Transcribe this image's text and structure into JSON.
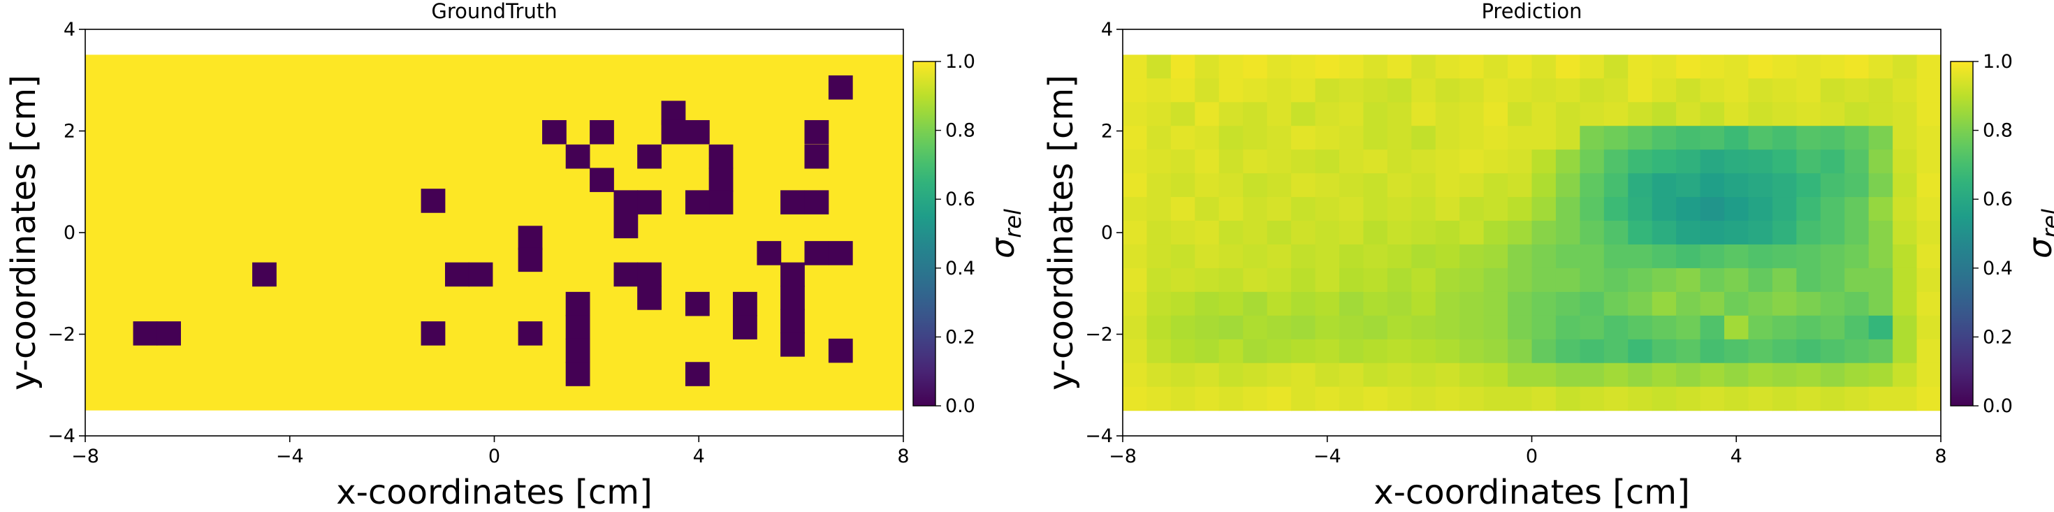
{
  "chart_data": [
    {
      "type": "heatmap",
      "title": "GroundTruth",
      "xlabel": "x-coordinates [cm]",
      "ylabel": "y-coordinates [cm]",
      "xlim": [
        -8,
        8
      ],
      "ylim": [
        -4,
        4
      ],
      "xticks": [
        -8,
        -4,
        0,
        4,
        8
      ],
      "yticks": [
        -4,
        -2,
        0,
        2,
        4
      ],
      "xticklabels": [
        "−8",
        "−4",
        "0",
        "4",
        "8"
      ],
      "yticklabels": [
        "−4",
        "−2",
        "0",
        "2",
        "4"
      ],
      "grid_extent": {
        "x": [
          -8,
          8
        ],
        "y": [
          -3.5,
          3.5
        ]
      },
      "cell_size": 0.467,
      "colorbar": {
        "label": "σrel",
        "range": [
          0,
          1
        ],
        "ticks": [
          0,
          0.2,
          0.4,
          0.6,
          0.8,
          1.0
        ],
        "ticklabels": [
          "0.0",
          "0.2",
          "0.4",
          "0.6",
          "0.8",
          "1.0"
        ]
      },
      "background_value": 1.0,
      "cells": [
        {
          "x": -6.83,
          "y": -1.98,
          "value": 0
        },
        {
          "x": -6.37,
          "y": -1.98,
          "value": 0
        },
        {
          "x": -4.5,
          "y": -0.82,
          "value": 0
        },
        {
          "x": -1.2,
          "y": 0.63,
          "value": 0
        },
        {
          "x": -1.2,
          "y": -1.98,
          "value": 0
        },
        {
          "x": -0.73,
          "y": -0.82,
          "value": 0
        },
        {
          "x": -0.27,
          "y": -0.82,
          "value": 0
        },
        {
          "x": 0.7,
          "y": -0.1,
          "value": 0
        },
        {
          "x": 0.7,
          "y": -0.53,
          "value": 0
        },
        {
          "x": 0.7,
          "y": -1.98,
          "value": 0
        },
        {
          "x": 1.17,
          "y": 1.98,
          "value": 0
        },
        {
          "x": 1.63,
          "y": 1.5,
          "value": 0
        },
        {
          "x": 1.63,
          "y": -1.4,
          "value": 0
        },
        {
          "x": 1.63,
          "y": -1.86,
          "value": 0
        },
        {
          "x": 1.63,
          "y": -2.32,
          "value": 0
        },
        {
          "x": 1.63,
          "y": -2.78,
          "value": 0
        },
        {
          "x": 2.1,
          "y": 1.98,
          "value": 0
        },
        {
          "x": 2.1,
          "y": 1.04,
          "value": 0
        },
        {
          "x": 2.57,
          "y": 0.6,
          "value": 0
        },
        {
          "x": 2.57,
          "y": 0.13,
          "value": 0
        },
        {
          "x": 3.03,
          "y": 0.6,
          "value": 0
        },
        {
          "x": 2.57,
          "y": -0.82,
          "value": 0
        },
        {
          "x": 3.03,
          "y": -0.82,
          "value": 0
        },
        {
          "x": 3.03,
          "y": -1.28,
          "value": 0
        },
        {
          "x": 3.03,
          "y": 1.5,
          "value": 0
        },
        {
          "x": 3.5,
          "y": 2.36,
          "value": 0
        },
        {
          "x": 3.5,
          "y": 1.98,
          "value": 0
        },
        {
          "x": 3.97,
          "y": 1.98,
          "value": 0
        },
        {
          "x": 4.43,
          "y": 1.5,
          "value": 0
        },
        {
          "x": 4.43,
          "y": 1.04,
          "value": 0
        },
        {
          "x": 4.43,
          "y": 0.6,
          "value": 0
        },
        {
          "x": 3.97,
          "y": 0.6,
          "value": 0
        },
        {
          "x": 3.97,
          "y": -1.4,
          "value": 0
        },
        {
          "x": 3.97,
          "y": -2.78,
          "value": 0
        },
        {
          "x": 4.9,
          "y": -1.4,
          "value": 0
        },
        {
          "x": 4.9,
          "y": -1.86,
          "value": 0
        },
        {
          "x": 5.37,
          "y": -0.4,
          "value": 0
        },
        {
          "x": 5.83,
          "y": 0.6,
          "value": 0
        },
        {
          "x": 6.3,
          "y": 0.6,
          "value": 0
        },
        {
          "x": 6.3,
          "y": 1.98,
          "value": 0
        },
        {
          "x": 6.3,
          "y": 1.5,
          "value": 0
        },
        {
          "x": 5.83,
          "y": -0.82,
          "value": 0
        },
        {
          "x": 5.83,
          "y": -1.28,
          "value": 0
        },
        {
          "x": 5.83,
          "y": -1.74,
          "value": 0
        },
        {
          "x": 5.83,
          "y": -2.2,
          "value": 0
        },
        {
          "x": 6.3,
          "y": -0.4,
          "value": 0
        },
        {
          "x": 6.77,
          "y": -0.4,
          "value": 0
        },
        {
          "x": 6.77,
          "y": 2.86,
          "value": 0
        },
        {
          "x": 6.77,
          "y": -2.32,
          "value": 0
        }
      ]
    },
    {
      "type": "heatmap",
      "title": "Prediction",
      "xlabel": "x-coordinates [cm]",
      "ylabel": "y-coordinates [cm]",
      "xlim": [
        -8,
        8
      ],
      "ylim": [
        -4,
        4
      ],
      "xticks": [
        -8,
        -4,
        0,
        4,
        8
      ],
      "yticks": [
        -4,
        -2,
        0,
        2,
        4
      ],
      "xticklabels": [
        "−8",
        "−4",
        "0",
        "4",
        "8"
      ],
      "yticklabels": [
        "−4",
        "−2",
        "0",
        "2",
        "4"
      ],
      "grid_extent": {
        "x": [
          -8,
          8
        ],
        "y": [
          -3.5,
          3.5
        ]
      },
      "colorbar": {
        "label": "σrel",
        "range": [
          0,
          1
        ],
        "ticks": [
          0,
          0.2,
          0.4,
          0.6,
          0.8,
          1.0
        ],
        "ticklabels": [
          "0.0",
          "0.2",
          "0.4",
          "0.6",
          "0.8",
          "1.0"
        ]
      },
      "nx": 34,
      "ny": 15,
      "values": [
        [
          0.97,
          0.93,
          0.98,
          0.95,
          0.97,
          0.98,
          0.96,
          0.97,
          0.98,
          0.97,
          0.95,
          0.97,
          0.94,
          0.96,
          0.97,
          0.95,
          0.97,
          0.95,
          0.98,
          0.96,
          0.93,
          0.97,
          0.96,
          0.98,
          0.97,
          0.96,
          0.98,
          0.97,
          0.96,
          0.97,
          0.98,
          0.96,
          0.94,
          0.97
        ],
        [
          0.97,
          0.96,
          0.97,
          0.94,
          0.97,
          0.96,
          0.95,
          0.96,
          0.93,
          0.94,
          0.93,
          0.92,
          0.95,
          0.93,
          0.94,
          0.96,
          0.95,
          0.94,
          0.95,
          0.93,
          0.94,
          0.97,
          0.95,
          0.93,
          0.95,
          0.96,
          0.94,
          0.95,
          0.96,
          0.93,
          0.94,
          0.93,
          0.95,
          0.97
        ],
        [
          0.96,
          0.95,
          0.93,
          0.97,
          0.94,
          0.93,
          0.95,
          0.92,
          0.94,
          0.95,
          0.92,
          0.93,
          0.96,
          0.94,
          0.95,
          0.97,
          0.93,
          0.95,
          0.93,
          0.94,
          0.95,
          0.93,
          0.91,
          0.94,
          0.92,
          0.95,
          0.93,
          0.94,
          0.95,
          0.94,
          0.92,
          0.93,
          0.94,
          0.97
        ],
        [
          0.97,
          0.94,
          0.96,
          0.95,
          0.92,
          0.93,
          0.94,
          0.96,
          0.95,
          0.94,
          0.92,
          0.93,
          0.91,
          0.94,
          0.95,
          0.96,
          0.95,
          0.95,
          0.93,
          0.8,
          0.78,
          0.75,
          0.72,
          0.7,
          0.71,
          0.68,
          0.72,
          0.7,
          0.73,
          0.72,
          0.75,
          0.8,
          0.94,
          0.96
        ],
        [
          0.96,
          0.95,
          0.94,
          0.96,
          0.93,
          0.95,
          0.94,
          0.93,
          0.92,
          0.94,
          0.95,
          0.93,
          0.94,
          0.95,
          0.96,
          0.95,
          0.94,
          0.9,
          0.84,
          0.78,
          0.72,
          0.68,
          0.66,
          0.64,
          0.6,
          0.62,
          0.63,
          0.66,
          0.7,
          0.68,
          0.73,
          0.82,
          0.93,
          0.96
        ],
        [
          0.97,
          0.94,
          0.93,
          0.95,
          0.94,
          0.92,
          0.93,
          0.95,
          0.94,
          0.93,
          0.92,
          0.94,
          0.93,
          0.95,
          0.94,
          0.92,
          0.93,
          0.88,
          0.82,
          0.75,
          0.7,
          0.62,
          0.58,
          0.6,
          0.56,
          0.58,
          0.6,
          0.62,
          0.66,
          0.7,
          0.72,
          0.8,
          0.92,
          0.97
        ],
        [
          0.95,
          0.94,
          0.96,
          0.93,
          0.95,
          0.93,
          0.94,
          0.92,
          0.93,
          0.94,
          0.92,
          0.93,
          0.92,
          0.94,
          0.91,
          0.92,
          0.9,
          0.86,
          0.8,
          0.74,
          0.68,
          0.63,
          0.58,
          0.55,
          0.52,
          0.55,
          0.58,
          0.62,
          0.68,
          0.72,
          0.76,
          0.84,
          0.93,
          0.96
        ],
        [
          0.96,
          0.93,
          0.94,
          0.95,
          0.92,
          0.93,
          0.91,
          0.93,
          0.92,
          0.93,
          0.9,
          0.92,
          0.91,
          0.9,
          0.92,
          0.88,
          0.86,
          0.82,
          0.8,
          0.76,
          0.72,
          0.66,
          0.62,
          0.58,
          0.57,
          0.58,
          0.6,
          0.64,
          0.7,
          0.72,
          0.76,
          0.82,
          0.92,
          0.95
        ],
        [
          0.95,
          0.93,
          0.92,
          0.94,
          0.93,
          0.92,
          0.93,
          0.91,
          0.92,
          0.9,
          0.91,
          0.9,
          0.88,
          0.89,
          0.87,
          0.86,
          0.82,
          0.8,
          0.78,
          0.78,
          0.74,
          0.74,
          0.72,
          0.7,
          0.72,
          0.74,
          0.72,
          0.73,
          0.74,
          0.76,
          0.78,
          0.82,
          0.9,
          0.96
        ],
        [
          0.96,
          0.92,
          0.93,
          0.92,
          0.91,
          0.93,
          0.92,
          0.9,
          0.92,
          0.89,
          0.9,
          0.88,
          0.9,
          0.87,
          0.86,
          0.84,
          0.82,
          0.8,
          0.8,
          0.78,
          0.76,
          0.78,
          0.8,
          0.82,
          0.78,
          0.8,
          0.76,
          0.8,
          0.74,
          0.76,
          0.8,
          0.8,
          0.9,
          0.95
        ],
        [
          0.95,
          0.91,
          0.9,
          0.88,
          0.89,
          0.87,
          0.9,
          0.88,
          0.89,
          0.86,
          0.88,
          0.87,
          0.89,
          0.86,
          0.85,
          0.84,
          0.8,
          0.78,
          0.76,
          0.74,
          0.78,
          0.8,
          0.84,
          0.8,
          0.82,
          0.78,
          0.8,
          0.82,
          0.8,
          0.78,
          0.76,
          0.8,
          0.9,
          0.96
        ],
        [
          0.94,
          0.9,
          0.88,
          0.87,
          0.86,
          0.88,
          0.87,
          0.86,
          0.88,
          0.87,
          0.86,
          0.88,
          0.87,
          0.86,
          0.85,
          0.84,
          0.8,
          0.78,
          0.74,
          0.75,
          0.72,
          0.74,
          0.76,
          0.78,
          0.72,
          0.86,
          0.78,
          0.76,
          0.74,
          0.76,
          0.72,
          0.66,
          0.88,
          0.95
        ],
        [
          0.95,
          0.91,
          0.89,
          0.88,
          0.9,
          0.87,
          0.88,
          0.89,
          0.9,
          0.88,
          0.89,
          0.9,
          0.89,
          0.88,
          0.86,
          0.85,
          0.82,
          0.76,
          0.72,
          0.7,
          0.72,
          0.68,
          0.72,
          0.74,
          0.7,
          0.72,
          0.74,
          0.72,
          0.7,
          0.72,
          0.74,
          0.76,
          0.88,
          0.96
        ],
        [
          0.96,
          0.94,
          0.93,
          0.94,
          0.92,
          0.93,
          0.94,
          0.95,
          0.93,
          0.94,
          0.92,
          0.93,
          0.92,
          0.93,
          0.91,
          0.9,
          0.86,
          0.86,
          0.84,
          0.84,
          0.86,
          0.84,
          0.86,
          0.84,
          0.86,
          0.84,
          0.86,
          0.85,
          0.86,
          0.84,
          0.86,
          0.87,
          0.92,
          0.96
        ],
        [
          0.97,
          0.96,
          0.95,
          0.96,
          0.95,
          0.96,
          0.97,
          0.95,
          0.96,
          0.95,
          0.96,
          0.95,
          0.94,
          0.95,
          0.94,
          0.93,
          0.93,
          0.94,
          0.92,
          0.93,
          0.94,
          0.93,
          0.92,
          0.93,
          0.94,
          0.93,
          0.94,
          0.93,
          0.94,
          0.93,
          0.94,
          0.95,
          0.95,
          0.97
        ]
      ]
    }
  ]
}
